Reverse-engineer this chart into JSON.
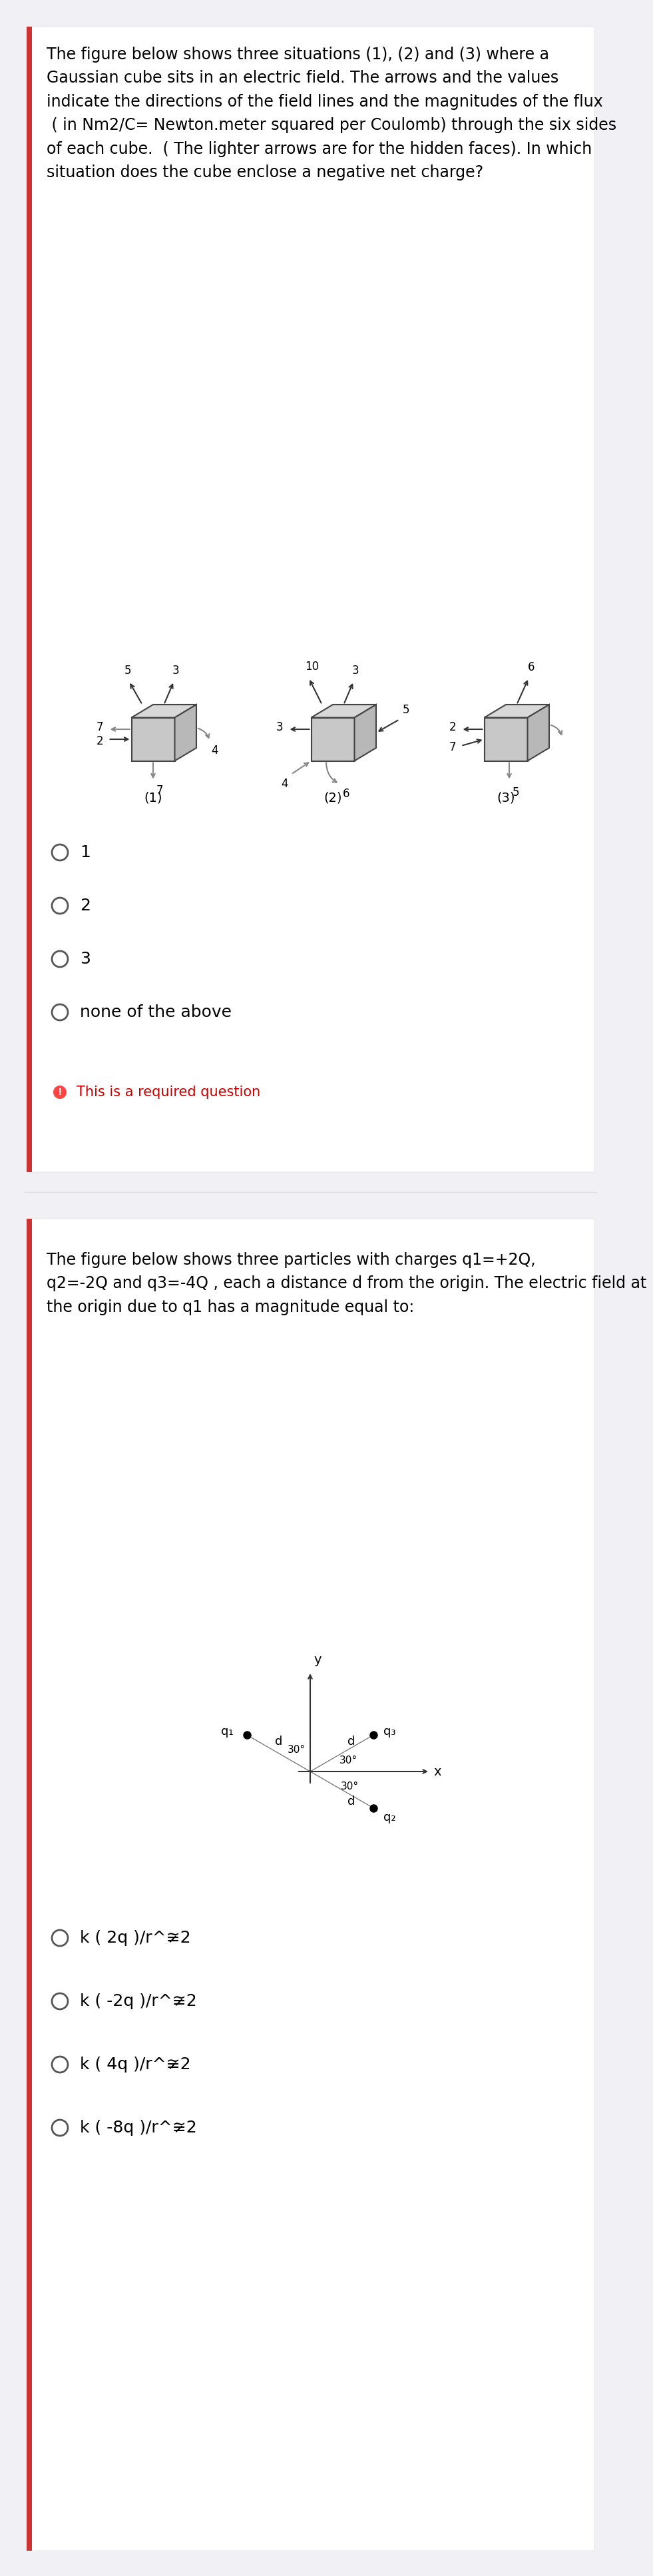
{
  "page_bg": "#f0f0f5",
  "card_bg": "#ffffff",
  "text_color": "#000000",
  "accent_color": "#cc0000",
  "q1_text": "The figure below shows three situations (1), (2) and (3) where a\nGaussian cube sits in an electric field. The arrows and the values\nindicate the directions of the field lines and the magnitudes of the flux\n ( in Nm2/C= Newton.meter squared per Coulomb) through the six sides\nof each cube.  ( The lighter arrows are for the hidden faces). In which\nsituation does the cube enclose a negative net charge?",
  "q1_options": [
    "1",
    "2",
    "3",
    "none of the above"
  ],
  "q1_required": "This is a required question",
  "q2_text": "The figure below shows three particles with charges q1=+2Q,\nq2=-2Q and q3=-4Q , each a distance d from the origin. The electric field at\nthe origin due to q1 has a magnitude equal to:",
  "q2_options": [
    "k ( 2q )/r^≆2",
    "k ( -2q )/r^≆2",
    "k ( 4q )/r^≆2",
    "k ( -8q )/r^≆2"
  ],
  "divider_color": "#e0e0e0",
  "radio_color": "#555555",
  "left_bar_color": "#cc3333",
  "left_bar_width": 8
}
